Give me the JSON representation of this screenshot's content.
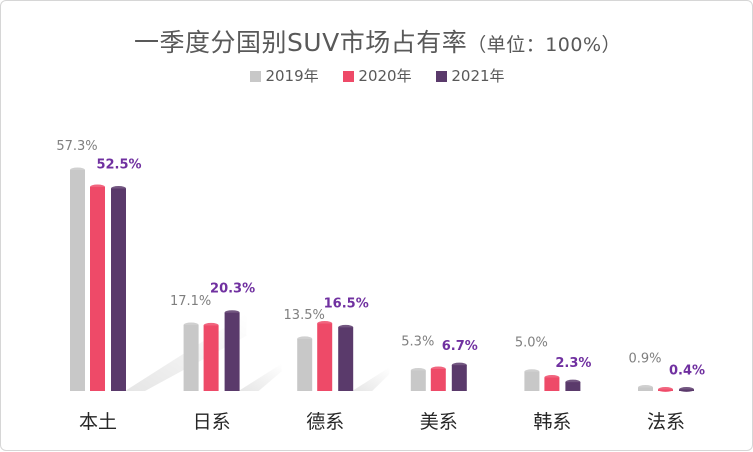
{
  "chart_data": {
    "type": "bar",
    "title": "一季度分国别SUV市场占有率",
    "unit_note": "（单位：100%）",
    "categories": [
      "本土",
      "日系",
      "德系",
      "美系",
      "韩系",
      "法系"
    ],
    "series": [
      {
        "name": "2019年",
        "color": "#c8c8c8",
        "label_color": "#7f7f7f",
        "values": [
          57.3,
          17.1,
          13.5,
          5.3,
          5.0,
          0.9
        ],
        "labels": [
          "57.3%",
          "17.1%",
          "13.5%",
          "5.3%",
          "5.0%",
          "0.9%"
        ]
      },
      {
        "name": "2020年",
        "color": "#ee4a68",
        "label_color": "#ee4a68",
        "values": [
          52.9,
          17.0,
          17.5,
          5.7,
          3.5,
          0.35
        ],
        "labels": []
      },
      {
        "name": "2021年",
        "color": "#5a3a6b",
        "label_color": "#7030a0",
        "values": [
          52.5,
          20.3,
          16.5,
          6.7,
          2.3,
          0.4
        ],
        "labels": [
          "52.5%",
          "20.3%",
          "16.5%",
          "6.7%",
          "2.3%",
          "0.4%"
        ]
      }
    ],
    "ylim": [
      0,
      60
    ],
    "grid": false,
    "legend_position": "top"
  }
}
